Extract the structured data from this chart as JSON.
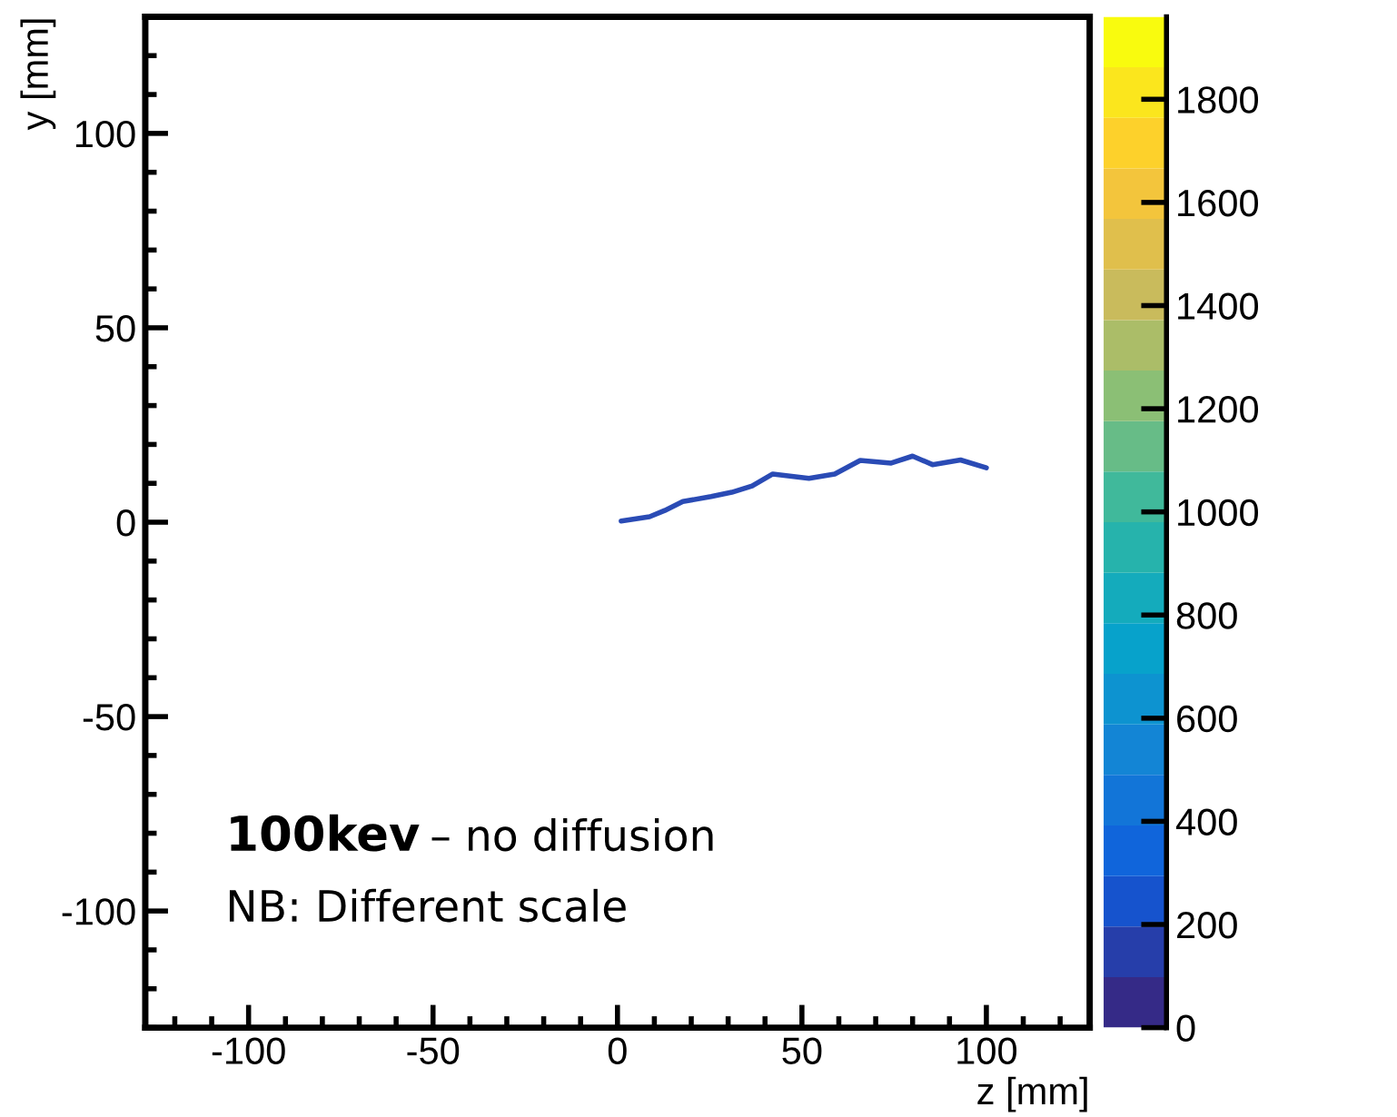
{
  "chart_data": {
    "type": "line",
    "xlabel": "z [mm]",
    "ylabel": "y [mm]",
    "x": [
      1.0,
      8.7,
      12.8,
      17.7,
      25.4,
      31.0,
      36.5,
      42.1,
      51.9,
      58.9,
      65.8,
      74.2,
      80.0,
      85.4,
      93.0,
      100.0
    ],
    "series": [
      {
        "color": "#2a4bb5",
        "values": [
          0.3,
          1.4,
          3.0,
          5.3,
          6.6,
          7.7,
          9.3,
          12.4,
          11.3,
          12.4,
          15.9,
          15.2,
          17.0,
          14.8,
          16.0,
          14.0
        ]
      }
    ],
    "xlim": [
      -128,
      128
    ],
    "ylim": [
      -130,
      130
    ],
    "xticks": [
      -100,
      -50,
      0,
      50,
      100
    ],
    "yticks": [
      -100,
      -50,
      0,
      50,
      100
    ],
    "clim": [
      0,
      1960
    ],
    "cticks": [
      0,
      200,
      400,
      600,
      800,
      1000,
      1200,
      1400,
      1600,
      1800
    ],
    "grid": false,
    "legend": false,
    "annotations": [
      {
        "text": "100kev – no diffusion"
      },
      {
        "text": "NB: Different scale"
      }
    ]
  }
}
